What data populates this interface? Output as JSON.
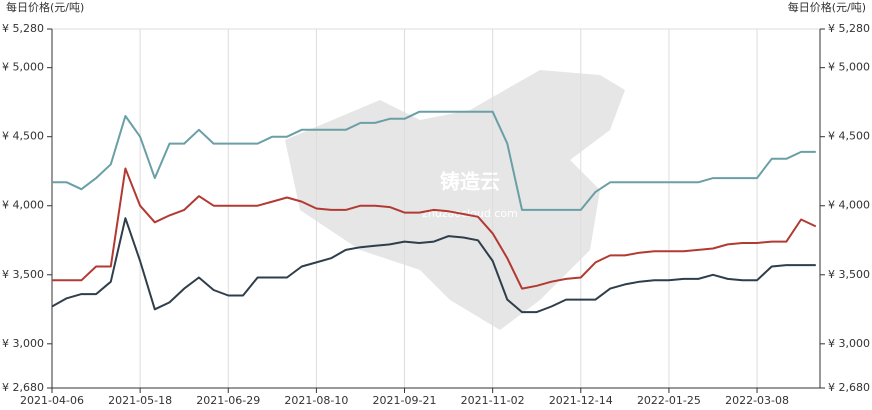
{
  "chart_data": {
    "type": "line",
    "y_axis_label": "每日价格(元/吨)",
    "y2_axis_label": "每日价格(元/吨)",
    "watermark": "铸造云",
    "watermark_url": "zhuzaocloud.com",
    "x": [
      "2021-04-06",
      "2021-04-13",
      "2021-04-20",
      "2021-04-27",
      "2021-05-04",
      "2021-05-11",
      "2021-05-18",
      "2021-05-25",
      "2021-06-01",
      "2021-06-08",
      "2021-06-15",
      "2021-06-22",
      "2021-06-29",
      "2021-07-06",
      "2021-07-13",
      "2021-07-20",
      "2021-07-27",
      "2021-08-03",
      "2021-08-10",
      "2021-08-17",
      "2021-08-24",
      "2021-08-31",
      "2021-09-07",
      "2021-09-14",
      "2021-09-21",
      "2021-09-28",
      "2021-10-05",
      "2021-10-12",
      "2021-10-19",
      "2021-10-26",
      "2021-11-02",
      "2021-11-09",
      "2021-11-16",
      "2021-11-23",
      "2021-11-30",
      "2021-12-07",
      "2021-12-14",
      "2021-12-21",
      "2021-12-28",
      "2022-01-04",
      "2022-01-11",
      "2022-01-18",
      "2022-01-25",
      "2022-02-01",
      "2022-02-08",
      "2022-02-15",
      "2022-02-22",
      "2022-03-01",
      "2022-03-08",
      "2022-03-15",
      "2022-03-22",
      "2022-03-29",
      "2022-04-05"
    ],
    "xlim": [
      "2021-04-06",
      "2022-04-07"
    ],
    "xticks": [
      "2021-04-06",
      "2021-05-18",
      "2021-06-29",
      "2021-08-10",
      "2021-09-21",
      "2021-11-02",
      "2021-12-14",
      "2022-01-25",
      "2022-03-08"
    ],
    "ylim": [
      2680,
      5280
    ],
    "yticks": [
      {
        "value": 2680,
        "label": "¥ 2,680"
      },
      {
        "value": 3000,
        "label": "¥ 3,000"
      },
      {
        "value": 3500,
        "label": "¥ 3,500"
      },
      {
        "value": 4000,
        "label": "¥ 4,000"
      },
      {
        "value": 4500,
        "label": "¥ 4,500"
      },
      {
        "value": 5000,
        "label": "¥ 5,000"
      },
      {
        "value": 5280,
        "label": "¥ 5,280"
      }
    ],
    "y2lim": [
      2680,
      5280
    ],
    "y2ticks": [
      {
        "value": 2680,
        "label": "¥ 2,680"
      },
      {
        "value": 3000,
        "label": "¥ 3,000"
      },
      {
        "value": 3500,
        "label": "¥ 3,500"
      },
      {
        "value": 4000,
        "label": "¥ 4,000"
      },
      {
        "value": 4500,
        "label": "¥ 4,500"
      },
      {
        "value": 5000,
        "label": "¥ 5,000"
      },
      {
        "value": 5280,
        "label": "¥ 5,280"
      }
    ],
    "grid": true,
    "series": [
      {
        "color": "#6a9fa6",
        "values": [
          4170,
          4170,
          4120,
          4200,
          4300,
          4650,
          4500,
          4200,
          4450,
          4450,
          4550,
          4450,
          4450,
          4450,
          4450,
          4500,
          4500,
          4550,
          4550,
          4550,
          4550,
          4600,
          4600,
          4630,
          4630,
          4680,
          4680,
          4680,
          4680,
          4680,
          4680,
          4450,
          3970,
          3970,
          3970,
          3970,
          3970,
          4100,
          4170,
          4170,
          4170,
          4170,
          4170,
          4170,
          4170,
          4200,
          4200,
          4200,
          4200,
          4340,
          4340,
          4390,
          4390
        ]
      },
      {
        "color": "#b23a32",
        "values": [
          3460,
          3460,
          3460,
          3560,
          3560,
          4270,
          4000,
          3880,
          3930,
          3970,
          4070,
          4000,
          4000,
          4000,
          4000,
          4030,
          4060,
          4030,
          3980,
          3970,
          3970,
          4000,
          4000,
          3990,
          3950,
          3950,
          3970,
          3960,
          3940,
          3920,
          3800,
          3620,
          3400,
          3420,
          3450,
          3470,
          3480,
          3590,
          3640,
          3640,
          3660,
          3670,
          3670,
          3670,
          3680,
          3690,
          3720,
          3730,
          3730,
          3740,
          3740,
          3900,
          3850
        ]
      },
      {
        "color": "#2f3e4b",
        "values": [
          3270,
          3330,
          3360,
          3360,
          3450,
          3910,
          3600,
          3250,
          3300,
          3400,
          3480,
          3390,
          3350,
          3350,
          3480,
          3480,
          3480,
          3560,
          3590,
          3620,
          3680,
          3700,
          3710,
          3720,
          3740,
          3730,
          3740,
          3780,
          3770,
          3750,
          3600,
          3320,
          3230,
          3230,
          3270,
          3320,
          3320,
          3320,
          3400,
          3430,
          3450,
          3460,
          3460,
          3470,
          3470,
          3500,
          3470,
          3460,
          3460,
          3560,
          3570,
          3570,
          3570
        ]
      }
    ]
  }
}
